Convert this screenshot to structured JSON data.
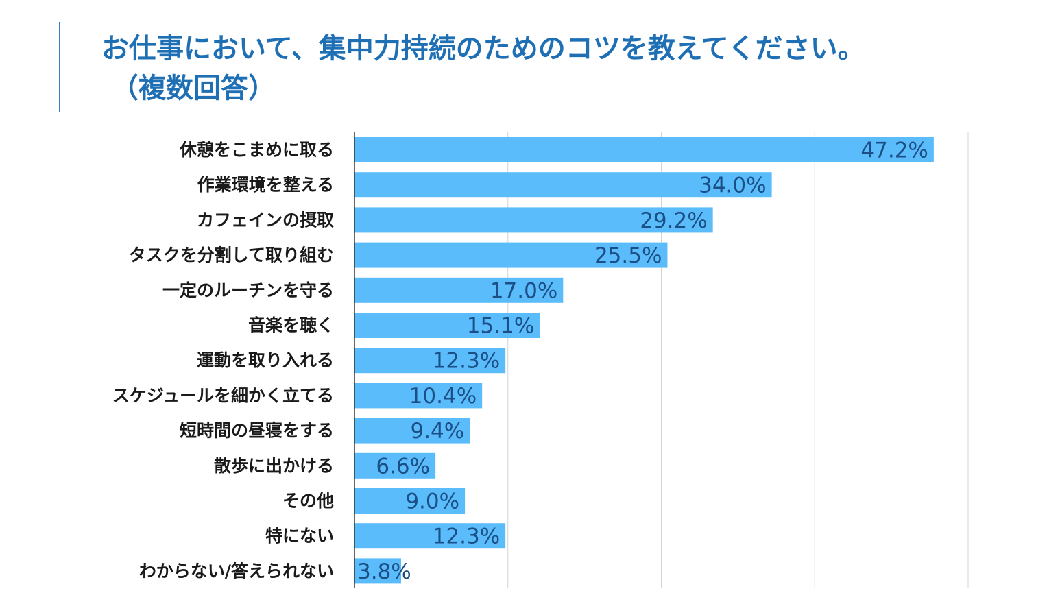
{
  "chart_data": {
    "type": "bar",
    "orientation": "horizontal",
    "title_lines": [
      "お仕事において、集中力持続のためのコツを教えてください。",
      "（複数回答）"
    ],
    "categories": [
      "休憩をこまめに取る",
      "作業環境を整える",
      "カフェインの摂取",
      "タスクを分割して取り組む",
      "一定のルーチンを守る",
      "音楽を聴く",
      "運動を取り入れる",
      "スケジュールを細かく立てる",
      "短時間の昼寝をする",
      "散歩に出かける",
      "その他",
      "特にない",
      "わからない/答えられない"
    ],
    "values": [
      47.2,
      34.0,
      29.2,
      25.5,
      17.0,
      15.1,
      12.3,
      10.4,
      9.4,
      6.6,
      9.0,
      12.3,
      3.8
    ],
    "value_labels": [
      "47.2%",
      "34.0%",
      "29.2%",
      "25.5%",
      "17.0%",
      "15.1%",
      "12.3%",
      "10.4%",
      "9.4%",
      "6.6%",
      "9.0%",
      "12.3%",
      "3.8%"
    ],
    "xlim": [
      0,
      50
    ],
    "grid": true,
    "bar_color": "#5bbcfb",
    "value_label_color": "#1b4f86",
    "title_color": "#1f6fb5"
  }
}
